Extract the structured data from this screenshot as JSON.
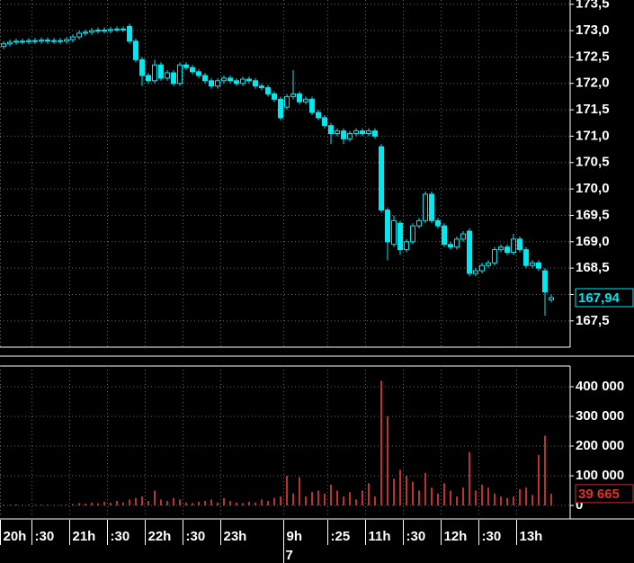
{
  "chart_data": {
    "type": "candlestick",
    "categories": [
      "20h",
      null,
      null,
      null,
      null,
      ":30",
      null,
      null,
      null,
      null,
      null,
      "21h",
      null,
      null,
      null,
      null,
      null,
      ":30",
      null,
      null,
      null,
      null,
      null,
      "22h",
      null,
      null,
      null,
      null,
      null,
      ":30",
      null,
      null,
      null,
      null,
      null,
      "23h",
      null,
      null,
      null,
      null,
      null,
      null,
      null,
      null,
      null,
      "9h",
      null,
      null,
      null,
      null,
      null,
      null,
      ":25",
      null,
      null,
      null,
      null,
      null,
      "11h",
      null,
      null,
      null,
      null,
      null,
      ":30",
      null,
      null,
      null,
      null,
      null,
      "12h",
      null,
      null,
      null,
      null,
      null,
      ":30",
      null,
      null,
      null,
      null,
      null,
      "13h",
      null,
      null,
      null,
      null,
      null
    ],
    "day_label": "7",
    "open": [
      172.7,
      172.75,
      172.78,
      172.8,
      172.79,
      172.81,
      172.8,
      172.82,
      172.8,
      172.81,
      172.8,
      172.83,
      172.88,
      172.95,
      172.97,
      173.0,
      173.01,
      173.0,
      173.02,
      173.03,
      173.08,
      172.8,
      172.45,
      172.15,
      172.05,
      172.35,
      172.1,
      172.2,
      172.0,
      172.35,
      172.3,
      172.22,
      172.15,
      172.05,
      171.95,
      172.05,
      172.1,
      172.05,
      172.0,
      172.08,
      172.05,
      171.95,
      171.92,
      171.8,
      171.7,
      171.55,
      171.75,
      171.8,
      171.65,
      171.7,
      171.45,
      171.35,
      171.2,
      171.05,
      171.1,
      170.95,
      171.05,
      171.1,
      171.05,
      171.1,
      170.8,
      169.6,
      168.95,
      169.35,
      168.85,
      169.0,
      169.3,
      169.4,
      169.9,
      169.4,
      169.3,
      168.95,
      168.9,
      169.05,
      169.2,
      168.4,
      168.45,
      168.55,
      168.6,
      168.85,
      168.9,
      168.8,
      169.05,
      168.85,
      168.55,
      168.6,
      168.45,
      167.9
    ],
    "high": [
      172.8,
      172.83,
      172.85,
      172.85,
      172.86,
      172.86,
      172.87,
      172.87,
      172.86,
      172.86,
      172.88,
      172.93,
      173.0,
      173.02,
      173.05,
      173.06,
      173.06,
      173.07,
      173.08,
      173.08,
      173.13,
      172.85,
      172.5,
      172.2,
      172.45,
      172.4,
      172.25,
      172.25,
      172.4,
      172.4,
      172.35,
      172.27,
      172.2,
      172.1,
      172.1,
      172.15,
      172.15,
      172.1,
      172.13,
      172.13,
      172.1,
      172.0,
      171.97,
      171.85,
      171.75,
      171.8,
      172.25,
      171.85,
      171.75,
      171.75,
      171.5,
      171.4,
      171.25,
      171.15,
      171.15,
      171.1,
      171.15,
      171.15,
      171.15,
      171.15,
      170.85,
      169.65,
      169.5,
      169.4,
      169.05,
      169.35,
      169.45,
      169.95,
      169.95,
      169.45,
      169.35,
      169.0,
      169.1,
      169.2,
      169.25,
      168.5,
      168.6,
      168.65,
      168.9,
      168.95,
      168.95,
      169.15,
      169.1,
      168.9,
      168.65,
      168.65,
      168.5,
      168.0
    ],
    "low": [
      172.65,
      172.7,
      172.73,
      172.74,
      172.74,
      172.75,
      172.75,
      172.75,
      172.75,
      172.75,
      172.75,
      172.78,
      172.83,
      172.9,
      172.92,
      172.95,
      172.95,
      172.95,
      172.97,
      172.97,
      172.75,
      172.4,
      171.95,
      172.0,
      172.0,
      172.05,
      172.05,
      171.95,
      171.95,
      172.25,
      172.17,
      172.1,
      172.0,
      171.9,
      171.9,
      172.0,
      172.0,
      171.95,
      171.95,
      172.0,
      171.9,
      171.87,
      171.75,
      171.65,
      171.3,
      171.5,
      171.7,
      171.6,
      171.6,
      171.4,
      171.3,
      171.15,
      170.85,
      171.0,
      170.85,
      170.9,
      171.0,
      171.0,
      171.0,
      170.95,
      169.55,
      168.65,
      168.9,
      168.75,
      168.8,
      168.95,
      169.25,
      169.35,
      169.35,
      169.25,
      168.9,
      168.85,
      168.85,
      169.0,
      168.35,
      168.35,
      168.4,
      168.5,
      168.55,
      168.8,
      168.75,
      168.75,
      168.8,
      168.5,
      168.5,
      168.45,
      167.6,
      167.85
    ],
    "close": [
      172.75,
      172.78,
      172.8,
      172.79,
      172.81,
      172.8,
      172.82,
      172.8,
      172.81,
      172.8,
      172.83,
      172.88,
      172.95,
      172.97,
      173.0,
      173.01,
      173.0,
      173.02,
      173.03,
      173.02,
      172.8,
      172.45,
      172.15,
      172.05,
      172.35,
      172.1,
      172.2,
      172.0,
      172.35,
      172.3,
      172.22,
      172.15,
      172.05,
      171.95,
      172.05,
      172.1,
      172.05,
      172.0,
      172.08,
      172.05,
      171.95,
      171.92,
      171.8,
      171.7,
      171.35,
      171.75,
      171.8,
      171.65,
      171.7,
      171.45,
      171.35,
      171.2,
      171.05,
      171.1,
      170.95,
      171.05,
      171.1,
      171.05,
      171.1,
      171.0,
      169.6,
      169.0,
      169.4,
      168.85,
      169.0,
      169.3,
      169.4,
      169.9,
      169.4,
      169.3,
      168.95,
      168.9,
      169.05,
      169.15,
      168.4,
      168.45,
      168.55,
      168.6,
      168.85,
      168.9,
      168.8,
      169.05,
      168.85,
      168.55,
      168.6,
      168.5,
      168.05,
      167.94
    ],
    "volume": [
      3000,
      2000,
      4000,
      2000,
      3000,
      2000,
      2500,
      3000,
      2000,
      1500,
      2000,
      5000,
      8000,
      6000,
      10000,
      7000,
      12000,
      9000,
      15000,
      10000,
      20000,
      25000,
      30000,
      15000,
      50000,
      20000,
      15000,
      25000,
      20000,
      10000,
      8000,
      12000,
      15000,
      20000,
      10000,
      25000,
      15000,
      10000,
      8000,
      12000,
      10000,
      20000,
      15000,
      25000,
      30000,
      100000,
      40000,
      95000,
      30000,
      45000,
      50000,
      40000,
      70000,
      50000,
      30000,
      45000,
      20000,
      50000,
      75000,
      30000,
      420000,
      300000,
      90000,
      120000,
      100000,
      80000,
      50000,
      110000,
      60000,
      40000,
      75000,
      50000,
      30000,
      60000,
      180000,
      50000,
      70000,
      60000,
      40000,
      30000,
      25000,
      30000,
      55000,
      60000,
      35000,
      170000,
      235000,
      39665
    ],
    "last_close_label": "167,94",
    "last_volume_label": "39 665",
    "color": "#00e8f0",
    "volume_color": "#c03030",
    "ylim": [
      167.02,
      173.58
    ],
    "yticks": [
      {
        "value": 167.5,
        "label": "167,5"
      },
      {
        "value": 168,
        "label": "168,0"
      },
      {
        "value": 168.5,
        "label": "168,5"
      },
      {
        "value": 169,
        "label": "169,0"
      },
      {
        "value": 169.5,
        "label": "169,5"
      },
      {
        "value": 170,
        "label": "170,0"
      },
      {
        "value": 170.5,
        "label": "170,5"
      },
      {
        "value": 171,
        "label": "171,0"
      },
      {
        "value": 171.5,
        "label": "171,5"
      },
      {
        "value": 172,
        "label": "172,0"
      },
      {
        "value": 172.5,
        "label": "172,5"
      },
      {
        "value": 173,
        "label": "173,0"
      },
      {
        "value": 173.5,
        "label": "173,5"
      }
    ],
    "volume_ylim": [
      -39400,
      469700
    ],
    "volume_yticks": [
      0,
      {
        "value": 100000,
        "label": "100 000"
      },
      {
        "value": 200000,
        "label": "200 000"
      },
      {
        "value": 300000,
        "label": "300 000"
      },
      {
        "value": 400000,
        "label": "400 000"
      }
    ],
    "grid": true
  }
}
